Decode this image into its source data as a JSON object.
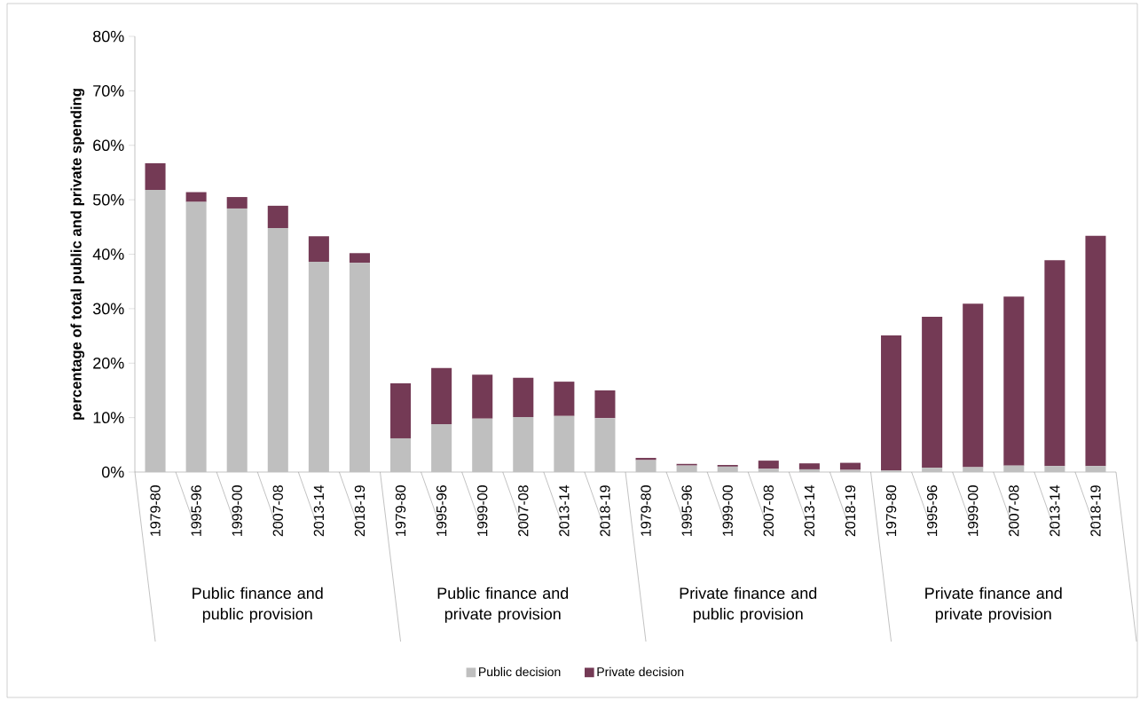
{
  "chart_data": {
    "type": "bar",
    "stacked": true,
    "ylabel": "percentage of total public and private spending",
    "categories": [
      "1979-80",
      "1995-96",
      "1999-00",
      "2007-08",
      "2013-14",
      "2018-19",
      "1979-80",
      "1995-96",
      "1999-00",
      "2007-08",
      "2013-14",
      "2018-19",
      "1979-80",
      "1995-96",
      "1999-00",
      "2007-08",
      "2013-14",
      "2018-19",
      "1979-80",
      "1995-96",
      "1999-00",
      "2007-08",
      "2013-14",
      "2018-19"
    ],
    "series": [
      {
        "name": "Public decision",
        "color": "#bfbfbf",
        "values": [
          51.8,
          49.6,
          48.4,
          44.8,
          38.6,
          38.4,
          6.2,
          8.8,
          9.8,
          10.1,
          10.3,
          9.9,
          2.2,
          1.2,
          1.0,
          0.6,
          0.5,
          0.4,
          0.3,
          0.8,
          0.9,
          1.2,
          1.1,
          1.1
        ]
      },
      {
        "name": "Private decision",
        "color": "#743a55",
        "values": [
          4.9,
          1.8,
          2.1,
          4.1,
          4.7,
          1.8,
          10.1,
          10.3,
          8.1,
          7.2,
          6.3,
          5.1,
          0.4,
          0.3,
          0.3,
          1.5,
          1.1,
          1.3,
          24.8,
          27.7,
          30.0,
          31.0,
          37.8,
          42.3
        ]
      }
    ],
    "annotations": [
      "Public finance and public provision",
      "Public finance and private provision",
      "Private finance and public provision",
      "Private finance and private provision"
    ],
    "ylim": [
      0,
      80
    ],
    "yticks": [
      {
        "value": 0,
        "label": "0%"
      },
      {
        "value": 10,
        "label": "10%"
      },
      {
        "value": 20,
        "label": "20%"
      },
      {
        "value": 30,
        "label": "30%"
      },
      {
        "value": 40,
        "label": "40%"
      },
      {
        "value": 50,
        "label": "50%"
      },
      {
        "value": 60,
        "label": "60%"
      },
      {
        "value": 70,
        "label": "70%"
      },
      {
        "value": 80,
        "label": "80%"
      }
    ],
    "grid": false,
    "legend": "bottom"
  }
}
